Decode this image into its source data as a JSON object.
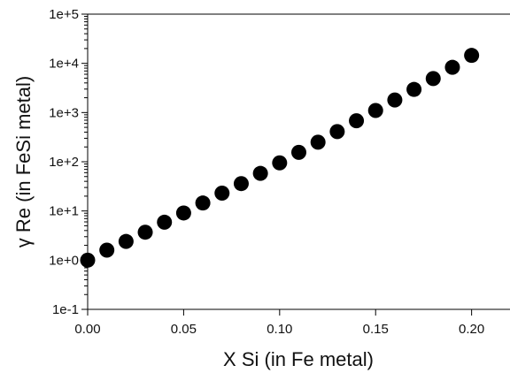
{
  "chart_data": {
    "type": "scatter",
    "title": "",
    "xlabel": "X Si (in Fe metal)",
    "ylabel": "γ Re (in FeSi metal)",
    "x_scale": "linear",
    "y_scale": "log",
    "xlim": [
      0.0,
      0.22
    ],
    "ylim": [
      0.1,
      100000
    ],
    "x_ticks": [
      0.0,
      0.05,
      0.1,
      0.15,
      0.2
    ],
    "x_tick_labels": [
      "0.00",
      "0.05",
      "0.10",
      "0.15",
      "0.20"
    ],
    "y_ticks": [
      0.1,
      1,
      10,
      100,
      1000,
      10000,
      100000
    ],
    "y_tick_labels": [
      "1e-1",
      "1e+0",
      "1e+1",
      "1e+2",
      "1e+3",
      "1e+4",
      "1e+5"
    ],
    "grid": false,
    "legend": "none",
    "marker_color": "#000000",
    "series": [
      {
        "x": [
          0.0,
          0.01,
          0.02,
          0.03,
          0.04,
          0.05,
          0.06,
          0.07,
          0.08,
          0.09,
          0.1,
          0.11,
          0.12,
          0.13,
          0.14,
          0.15,
          0.16,
          0.17,
          0.18,
          0.19,
          0.2
        ],
        "y": [
          1.0,
          1.6,
          2.4,
          3.7,
          5.9,
          9.1,
          14.5,
          23,
          36,
          58,
          95,
          155,
          250,
          410,
          680,
          1100,
          1800,
          2950,
          4900,
          8300,
          14500
        ]
      }
    ]
  }
}
